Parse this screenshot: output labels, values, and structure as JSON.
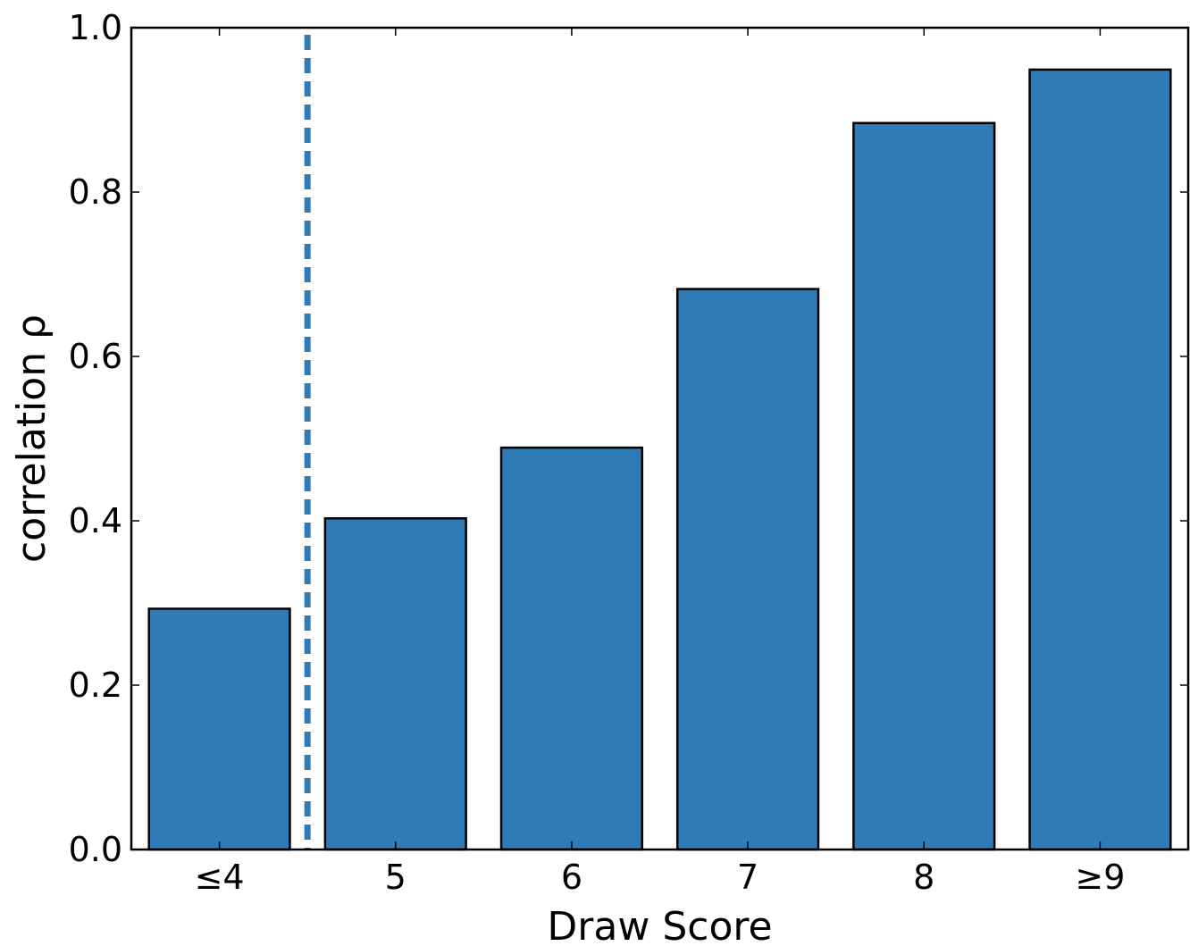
{
  "chart_data": {
    "type": "bar",
    "title": "",
    "xlabel": "Draw Score",
    "ylabel": "correlation ρ",
    "categories": [
      "≤4",
      "5",
      "6",
      "7",
      "8",
      "≥9"
    ],
    "values": [
      0.293,
      0.403,
      0.489,
      0.682,
      0.884,
      0.949
    ],
    "ylim": [
      0,
      1.0
    ],
    "yticks": [
      "0.0",
      "0.2",
      "0.4",
      "0.6",
      "0.8",
      "1.0"
    ],
    "grid": false,
    "legend": "none",
    "reference_line": {
      "orientation": "vertical",
      "position_between": [
        "≤4",
        "5"
      ],
      "style": "dashed"
    },
    "colors": {
      "bar": "#2e7bb8",
      "bar_edge": "#000000",
      "reference_line": "#2e7bb8"
    }
  }
}
